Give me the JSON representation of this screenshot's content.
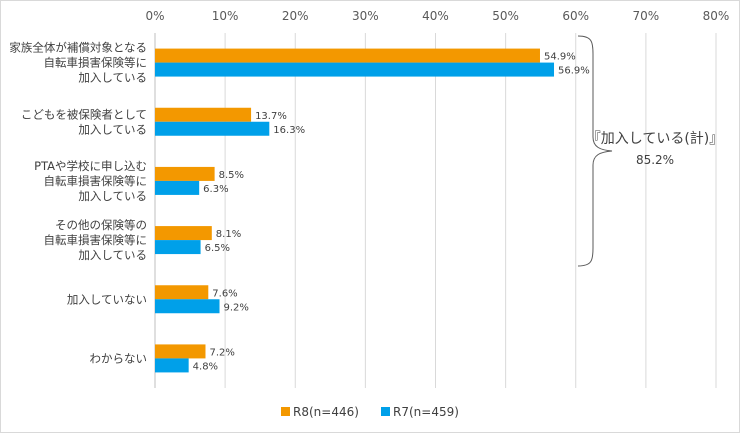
{
  "chart_data": {
    "type": "bar",
    "orientation": "horizontal",
    "categories": [
      [
        "家族全体が補償対象となる",
        "自転車損害保険等に",
        "加入している"
      ],
      [
        "こどもを被保険者として",
        "加入している"
      ],
      [
        "PTAや学校に申し込む",
        "自転車損害保険等に",
        "加入している"
      ],
      [
        "その他の保険等の",
        "自転車損害保険等に",
        "加入している"
      ],
      [
        "加入していない"
      ],
      [
        "わからない"
      ]
    ],
    "series": [
      {
        "name": "R8(n=446)",
        "color": "#f39800",
        "values": [
          54.9,
          13.7,
          8.5,
          8.1,
          7.6,
          7.2
        ],
        "labels": [
          "54.9%",
          "13.7%",
          "8.5%",
          "8.1%",
          "7.6%",
          "7.2%"
        ]
      },
      {
        "name": "R7(n=459)",
        "color": "#00a0e9",
        "values": [
          56.9,
          16.3,
          6.3,
          6.5,
          9.2,
          4.8
        ],
        "labels": [
          "56.9%",
          "16.3%",
          "6.3%",
          "6.5%",
          "9.2%",
          "4.8%"
        ]
      }
    ],
    "xlim": [
      0,
      80
    ],
    "xticks": [
      "0%",
      "10%",
      "20%",
      "30%",
      "40%",
      "50%",
      "60%",
      "70%",
      "80%"
    ],
    "grid": true,
    "legend_position": "bottom",
    "annotation": {
      "title": "『加入している(計)』",
      "value": "85.2%"
    }
  }
}
